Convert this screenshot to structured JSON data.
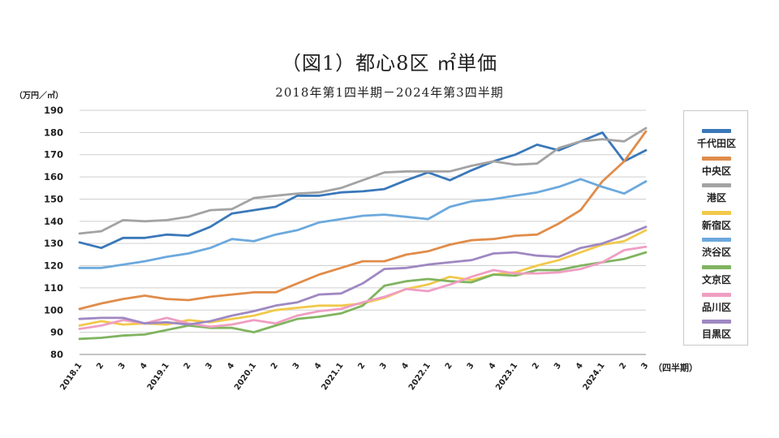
{
  "title": "（図1）都心8区  ㎡単価",
  "subtitle": "2018年第1四半期－2024年第3四半期",
  "chart_data": {
    "type": "line",
    "ylabel": "（万円／㎡）",
    "xlabel": "（四半期）",
    "ylim": [
      80,
      190
    ],
    "yticks": [
      80,
      90,
      100,
      110,
      120,
      130,
      140,
      150,
      160,
      170,
      180,
      190
    ],
    "grid": true,
    "legend_position": "right",
    "categories": [
      "2018.1",
      "2",
      "3",
      "4",
      "2019.1",
      "2",
      "3",
      "4",
      "2020.1",
      "2",
      "3",
      "4",
      "2021.1",
      "2",
      "3",
      "4",
      "2022.1",
      "2",
      "3",
      "4",
      "2023.1",
      "2",
      "3",
      "4",
      "2024.1",
      "2",
      "3"
    ],
    "series": [
      {
        "name": "千代田区",
        "color": "#3a78b9",
        "values": [
          130.5,
          128,
          132.5,
          132.5,
          134,
          133.5,
          137.5,
          143.5,
          145,
          146.5,
          151.5,
          151.5,
          153,
          153.5,
          154.5,
          158.5,
          162,
          158.5,
          163,
          167,
          170,
          174.5,
          172,
          176,
          180,
          167,
          172
        ]
      },
      {
        "name": "中央区",
        "color": "#e08c4a",
        "values": [
          100.5,
          103,
          105,
          106.5,
          105,
          104.5,
          106,
          107,
          108,
          108,
          112,
          116,
          119,
          122,
          122,
          125,
          126.5,
          129.5,
          131.5,
          132,
          133.5,
          134,
          139,
          145,
          158,
          167,
          180.5
        ]
      },
      {
        "name": "港区",
        "color": "#a3a3a3",
        "values": [
          134.5,
          135.5,
          140.5,
          140,
          140.5,
          142,
          145,
          145.5,
          150.5,
          151.5,
          152.5,
          153,
          155,
          158.5,
          162,
          162.5,
          162.5,
          162.5,
          165,
          167,
          165.5,
          166,
          173,
          176,
          177,
          176,
          182
        ]
      },
      {
        "name": "新宿区",
        "color": "#f1c94a",
        "values": [
          93,
          95,
          93.5,
          94,
          93.5,
          95.5,
          94.5,
          96,
          97.5,
          100,
          101,
          102,
          102,
          103,
          105.5,
          109.5,
          111.5,
          115,
          113.5,
          116,
          117,
          120,
          122.5,
          126,
          129.5,
          131,
          136
        ]
      },
      {
        "name": "渋谷区",
        "color": "#6ca9dd",
        "values": [
          119,
          119,
          120.5,
          122,
          124,
          125.5,
          128,
          132,
          131,
          134,
          136,
          139.5,
          141,
          142.5,
          143,
          142,
          141,
          146.5,
          149,
          150,
          151.5,
          153,
          155.5,
          159,
          155.5,
          152.5,
          158
        ]
      },
      {
        "name": "文京区",
        "color": "#80b460",
        "values": [
          87,
          87.5,
          88.5,
          89,
          91,
          93,
          92,
          92,
          90,
          93,
          96,
          97,
          98.5,
          102,
          111,
          113,
          114,
          113,
          112.5,
          116,
          115.5,
          118,
          118,
          120,
          121.5,
          123,
          126
        ]
      },
      {
        "name": "品川区",
        "color": "#ef9ec2",
        "values": [
          91.5,
          93,
          95.5,
          94,
          96.5,
          94,
          92.5,
          93.5,
          95.5,
          94,
          97.5,
          99.5,
          100.5,
          103.5,
          106,
          109.5,
          108.5,
          111.5,
          115,
          118,
          116.5,
          116.5,
          117,
          118.5,
          121.5,
          127,
          128.5
        ]
      },
      {
        "name": "目黒区",
        "color": "#9f88c2",
        "values": [
          96,
          96.5,
          96.5,
          94,
          94.5,
          93.5,
          95,
          97.5,
          99.5,
          102,
          103.5,
          107,
          107.5,
          112,
          118.5,
          119,
          120.5,
          121.5,
          122.5,
          125.5,
          126,
          124.5,
          124,
          128,
          130,
          133.5,
          137.5
        ]
      }
    ]
  }
}
